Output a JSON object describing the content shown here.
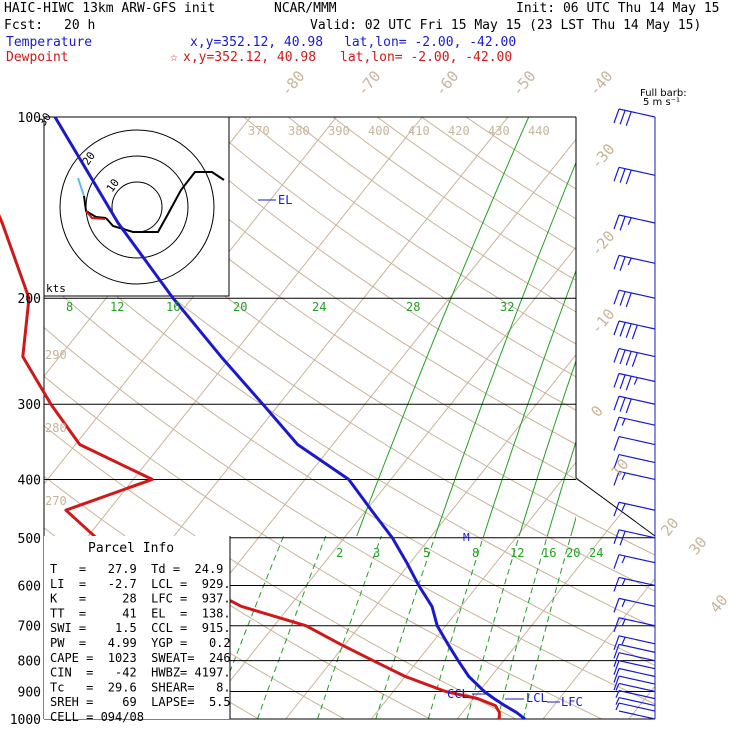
{
  "header": {
    "model": "HAIC-HIWC 13km ARW-GFS init",
    "org": "NCAR/MMM",
    "init": "Init: 06 UTC Thu 14 May 15",
    "fcst_label": "Fcst:",
    "fcst_value": "20 h",
    "valid": "Valid: 02 UTC Fri 15 May 15 (23 LST Thu 14 May 15)",
    "temp_label": "Temperature",
    "temp_loc": "x,y=352.12, 40.98",
    "temp_latlon": "lat,lon= -2.00, -42.00",
    "dew_label": "Dewpoint",
    "dew_loc": "x,y=352.12, 40.98",
    "dew_latlon": "lat,lon= -2.00, -42.00",
    "dew_star": "☆"
  },
  "barb_legend": {
    "line1": "Full barb:",
    "line2": "5 m s⁻¹"
  },
  "hodograph": {
    "units": "kts",
    "ring_labels": [
      "10",
      "20",
      "30"
    ]
  },
  "parcel_info": {
    "title": "Parcel Info",
    "rows": [
      "T   =   27.9  Td =  24.9",
      "LI  =   -2.7  LCL =  929.",
      "K   =     28  LFC =  937.",
      "TT  =     41  EL  =  138.",
      "SWI =    1.5  CCL =  915.",
      "PW  =   4.99  YGP =   0.2",
      "CAPE =  1023  SWEAT=  246",
      "CIN  =   -42  HWBZ= 4197.",
      "Tc   =  29.6  SHEAR=   8.",
      "SREH =    69  LAPSE=  5.5",
      "CELL = 094/08"
    ]
  },
  "levels_markers": {
    "el": "EL",
    "ccl": "CCL",
    "lcl": "LCL",
    "lfc": "LFC",
    "melt": "M"
  },
  "colors": {
    "temperature": "#1a1acc",
    "dewpoint": "#d01818",
    "mixing_ratio": "#22a022",
    "dry_adiabat": "#c8b49a",
    "isotherm": "#c8b49a",
    "wind": "#1a1acc"
  },
  "chart_data": {
    "type": "line",
    "pressure_levels": [
      100,
      200,
      300,
      400,
      500,
      600,
      700,
      800,
      900,
      1000
    ],
    "pressure_axis_labels": [
      "100",
      "200",
      "300",
      "400",
      "500",
      "600",
      "700",
      "800",
      "900",
      "1000"
    ],
    "isotherm_labels": [
      -80,
      -70,
      -60,
      -50,
      -40,
      -30,
      -20,
      -10,
      0,
      10,
      20,
      30,
      40
    ],
    "potential_temp_labels": [
      370,
      380,
      390,
      400,
      410,
      420,
      430,
      440
    ],
    "potential_temp_side_labels": [
      290,
      280,
      270
    ],
    "mixing_ratio_labels_upper": [
      8,
      12,
      16,
      20,
      24,
      28,
      32
    ],
    "mixing_ratio_labels_lower": [
      2,
      3,
      5,
      8,
      12,
      16,
      20,
      24
    ],
    "series": [
      {
        "name": "Temperature",
        "pressure": [
          1000,
          975,
          950,
          925,
          900,
          850,
          800,
          750,
          700,
          650,
          600,
          550,
          500,
          450,
          400,
          350,
          300,
          250,
          200,
          150,
          100
        ],
        "values": [
          27.9,
          26.3,
          24.3,
          22.4,
          20.6,
          17.4,
          14.7,
          11.9,
          9.0,
          6.6,
          3.1,
          -0.4,
          -4.4,
          -9.4,
          -14.9,
          -24.1,
          -31.9,
          -41.2,
          -52.2,
          -65.6,
          -82.8
        ]
      },
      {
        "name": "Dewpoint",
        "pressure": [
          1000,
          975,
          950,
          925,
          900,
          850,
          800,
          750,
          700,
          650,
          600,
          550,
          500,
          450,
          400,
          350,
          300,
          250,
          200,
          150,
          100
        ],
        "values": [
          24.9,
          24.3,
          23.2,
          20.5,
          16.1,
          10.0,
          4.8,
          -0.7,
          -6.3,
          -15.6,
          -22.3,
          -30.3,
          -38.9,
          -45.0,
          -37.8,
          -49.5,
          -56.6,
          -64.3,
          -69.0,
          -79.1,
          -94.2
        ]
      }
    ],
    "wind_barbs": {
      "pressure": [
        1000,
        970,
        950,
        925,
        900,
        875,
        850,
        825,
        800,
        775,
        750,
        700,
        650,
        600,
        550,
        500,
        450,
        400,
        375,
        350,
        325,
        300,
        275,
        250,
        225,
        200,
        175,
        150,
        125,
        100
      ],
      "speed_ms": [
        2,
        3,
        3,
        4,
        4,
        5,
        5,
        6,
        6,
        7,
        8,
        8,
        8,
        9,
        9,
        10,
        9,
        8,
        7,
        5,
        8,
        15,
        18,
        20,
        20,
        16,
        13,
        14,
        15,
        16
      ]
    }
  }
}
